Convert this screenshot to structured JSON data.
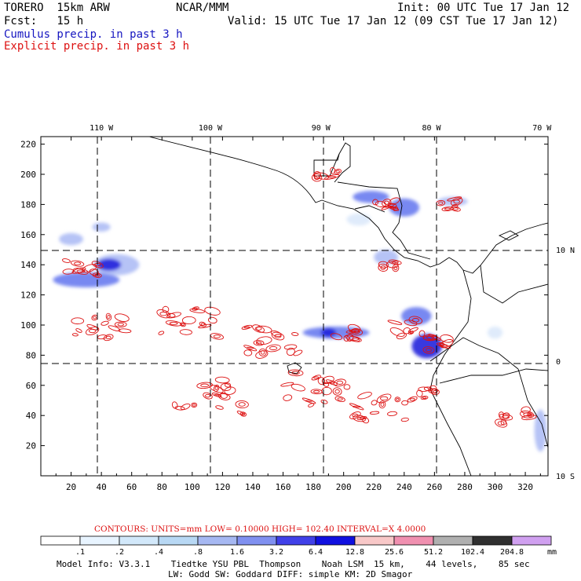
{
  "header": {
    "model": "TORERO  15km ARW",
    "org": "NCAR/MMM",
    "init": "Init: 00 UTC Tue 17 Jan 12",
    "fcst": "Fcst:   15 h",
    "valid": "Valid: 15 UTC Tue 17 Jan 12 (09 CST Tue 17 Jan 12)",
    "legend_cumulus": "Cumulus precip. in past 3 h",
    "legend_explicit": "Explicit precip. in past 3 h"
  },
  "colors": {
    "cumulus": "#1515c0",
    "explicit": "#dd1111",
    "grid": "#000000"
  },
  "chart_data": {
    "type": "heatmap",
    "title": "Cumulus precip. in past 3 h / Explicit precip. in past 3 h",
    "x_grid_range": [
      0,
      335
    ],
    "y_grid_range": [
      0,
      225
    ],
    "x_ticks": [
      20,
      40,
      60,
      80,
      100,
      120,
      140,
      160,
      180,
      200,
      220,
      240,
      260,
      280,
      300,
      320
    ],
    "y_ticks": [
      20,
      40,
      60,
      80,
      100,
      120,
      140,
      160,
      180,
      200,
      220
    ],
    "longitude_labels": [
      {
        "x": 40,
        "label": "110 W"
      },
      {
        "x": 112,
        "label": "100 W"
      },
      {
        "x": 185,
        "label": "90 W"
      },
      {
        "x": 258,
        "label": "80 W"
      },
      {
        "x": 331,
        "label": "70 W"
      }
    ],
    "latitude_labels": [
      {
        "y": 150,
        "label": "10 N"
      },
      {
        "y": 76,
        "label": "0"
      },
      {
        "y": 0,
        "label": "10 S"
      }
    ],
    "cumulus_areas": [
      {
        "x": 30,
        "y": 130,
        "rx": 22,
        "ry": 5,
        "level": 3
      },
      {
        "x": 50,
        "y": 140,
        "rx": 15,
        "ry": 7,
        "level": 2
      },
      {
        "x": 45,
        "y": 140,
        "rx": 8,
        "ry": 4,
        "level": 4
      },
      {
        "x": 20,
        "y": 157,
        "rx": 8,
        "ry": 4,
        "level": 2
      },
      {
        "x": 40,
        "y": 165,
        "rx": 6,
        "ry": 3,
        "level": 2
      },
      {
        "x": 195,
        "y": 95,
        "rx": 22,
        "ry": 4,
        "level": 3
      },
      {
        "x": 190,
        "y": 95,
        "rx": 5,
        "ry": 3,
        "level": 4
      },
      {
        "x": 255,
        "y": 86,
        "rx": 10,
        "ry": 8,
        "level": 4
      },
      {
        "x": 248,
        "y": 106,
        "rx": 10,
        "ry": 6,
        "level": 3
      },
      {
        "x": 218,
        "y": 185,
        "rx": 12,
        "ry": 4,
        "level": 3
      },
      {
        "x": 240,
        "y": 178,
        "rx": 10,
        "ry": 6,
        "level": 3
      },
      {
        "x": 210,
        "y": 170,
        "rx": 8,
        "ry": 4,
        "level": 1
      },
      {
        "x": 228,
        "y": 145,
        "rx": 8,
        "ry": 5,
        "level": 2
      },
      {
        "x": 272,
        "y": 182,
        "rx": 10,
        "ry": 3,
        "level": 2
      },
      {
        "x": 300,
        "y": 95,
        "rx": 5,
        "ry": 4,
        "level": 1
      },
      {
        "x": 330,
        "y": 30,
        "rx": 4,
        "ry": 14,
        "level": 2
      }
    ],
    "explicit_clusters": [
      {
        "x": 28,
        "y": 138,
        "spread": 14
      },
      {
        "x": 40,
        "y": 98,
        "spread": 22
      },
      {
        "x": 98,
        "y": 102,
        "spread": 25
      },
      {
        "x": 150,
        "y": 90,
        "spread": 25
      },
      {
        "x": 200,
        "y": 95,
        "spread": 12
      },
      {
        "x": 245,
        "y": 98,
        "spread": 14
      },
      {
        "x": 262,
        "y": 88,
        "spread": 12
      },
      {
        "x": 252,
        "y": 55,
        "spread": 12
      },
      {
        "x": 110,
        "y": 52,
        "spread": 30
      },
      {
        "x": 180,
        "y": 58,
        "spread": 28
      },
      {
        "x": 225,
        "y": 45,
        "spread": 22
      },
      {
        "x": 315,
        "y": 40,
        "spread": 14
      },
      {
        "x": 225,
        "y": 180,
        "spread": 12
      },
      {
        "x": 268,
        "y": 180,
        "spread": 10
      },
      {
        "x": 230,
        "y": 140,
        "spread": 6
      },
      {
        "x": 190,
        "y": 200,
        "spread": 10
      }
    ],
    "contour_line": "CONTOURS:  UNITS=mm  LOW= 0.10000     HIGH=  102.40     INTERVAL=X  4.0000",
    "colorbar": {
      "levels": [
        ".1",
        ".2",
        ".4",
        ".8",
        "1.6",
        "3.2",
        "6.4",
        "12.8",
        "25.6",
        "51.2",
        "102.4",
        "204.8"
      ],
      "unit": "mm",
      "colors": [
        "#ffffff",
        "#e8f4ff",
        "#d2e8fa",
        "#b8d8f4",
        "#a6b8f2",
        "#8090f0",
        "#4040e8",
        "#1010e0",
        "#f8c8c8",
        "#f090b0",
        "#b0b0b0",
        "#303030",
        "#d0a0f0"
      ]
    }
  },
  "footer": {
    "line1": "Model Info: V3.3.1    Tiedtke YSU PBL  Thompson    Noah LSM  15 km,    44 levels,    85 sec",
    "line2": "LW: Godd SW: Goddard DIFF: simple KM: 2D Smagor"
  }
}
